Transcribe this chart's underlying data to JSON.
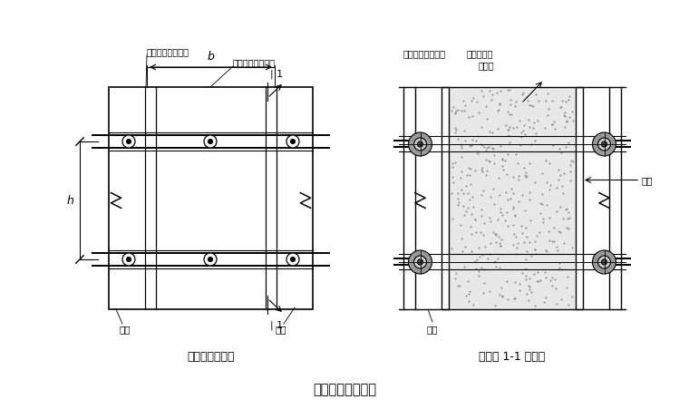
{
  "title": "墙模板设计简图。",
  "left_diagram_title": "墙模板正立面图",
  "right_diagram_title": "墙模板 1-1 剖面图",
  "bg_color": "#ffffff",
  "line_color": "#000000",
  "text_color": "#000000"
}
